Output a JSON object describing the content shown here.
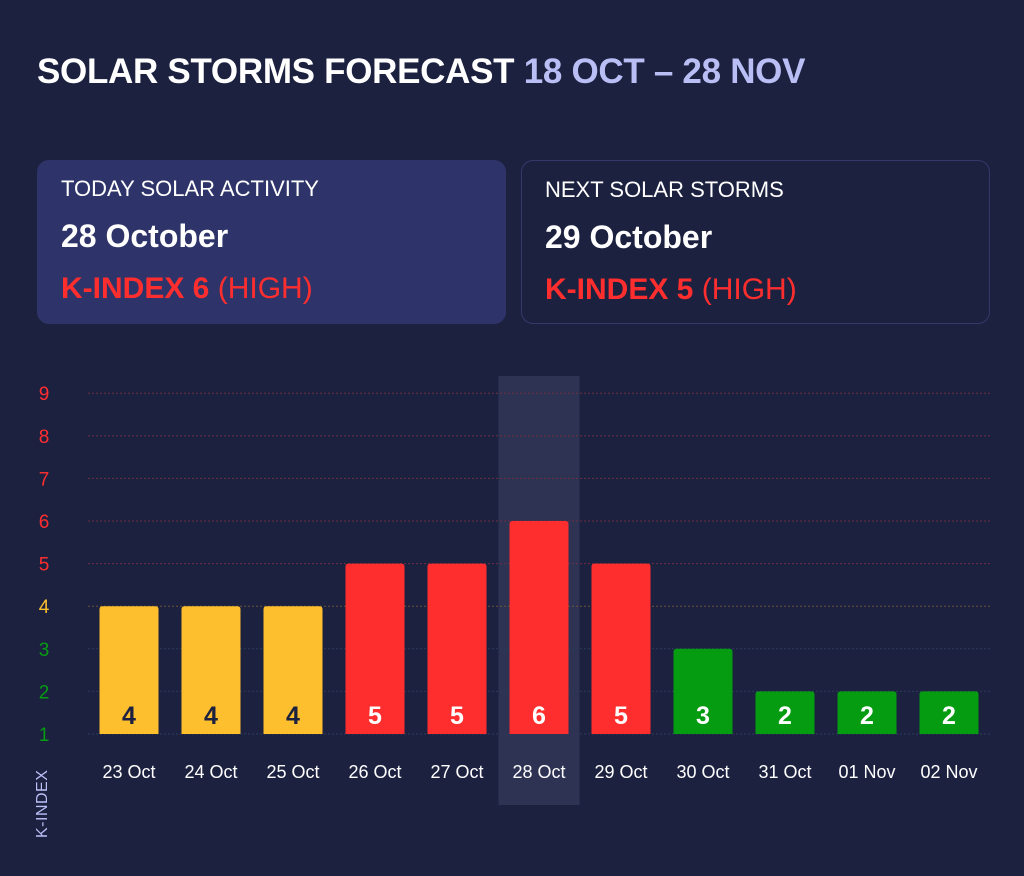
{
  "title": {
    "main": "SOLAR STORMS FORECAST",
    "range": "18 OCT – 28 NOV"
  },
  "today": {
    "caption": "TODAY SOLAR ACTIVITY",
    "date": "28 October",
    "kindex": "K-INDEX 6",
    "level": "(HIGH)"
  },
  "next": {
    "caption": "NEXT SOLAR STORMS",
    "date": "29 October",
    "kindex": "K-INDEX 5",
    "level": "(HIGH)"
  },
  "colors": {
    "background": "#1c2140",
    "yellow": "#fdbf2d",
    "red": "#ff2e2e",
    "green": "#059c12",
    "highlight": "#2e3354",
    "accent": "#b9bff5"
  },
  "chart_data": {
    "type": "bar",
    "categories": [
      "23 Oct",
      "24 Oct",
      "25 Oct",
      "26 Oct",
      "27 Oct",
      "28 Oct",
      "29 Oct",
      "30 Oct",
      "31 Oct",
      "01 Nov",
      "02 Nov"
    ],
    "values": [
      4,
      4,
      4,
      5,
      5,
      6,
      5,
      3,
      2,
      2,
      2
    ],
    "ylabel": "K-INDEX",
    "yticks": [
      1,
      2,
      3,
      4,
      5,
      6,
      7,
      8,
      9
    ],
    "ylim": [
      1,
      9
    ],
    "highlight_category": "28 Oct",
    "grid": true
  }
}
